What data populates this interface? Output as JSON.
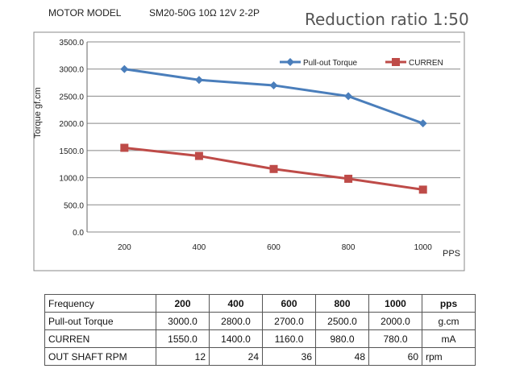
{
  "header": {
    "model_label": "MOTOR MODEL",
    "model_spec": "SM20-50G  10Ω  12V 2-2P",
    "ratio": "Reduction ratio 1:50"
  },
  "chart_data": {
    "type": "line",
    "categories": [
      "200",
      "400",
      "600",
      "800",
      "1000"
    ],
    "xlabel": "PPS",
    "ylabel": "Torque   gf.cm",
    "ylim": [
      0,
      3500
    ],
    "yticks": [
      "0.0",
      "500.0",
      "1000.0",
      "1500.0",
      "2000.0",
      "2500.0",
      "3000.0",
      "3500.0"
    ],
    "grid": true,
    "legend": "top-right",
    "series": [
      {
        "name": "Pull-out Torque",
        "values": [
          3000,
          2800,
          2700,
          2500,
          2000
        ],
        "color": "#4a7ebb",
        "marker": "diamond"
      },
      {
        "name": "CURREN",
        "values": [
          1550,
          1400,
          1160,
          980,
          780
        ],
        "color": "#be4b48",
        "marker": "square"
      }
    ]
  },
  "table": {
    "rows": [
      {
        "label": "Frequency",
        "cells": [
          "200",
          "400",
          "600",
          "800",
          "1000"
        ],
        "unit": "pps"
      },
      {
        "label": "Pull-out Torque",
        "cells": [
          "3000.0",
          "2800.0",
          "2700.0",
          "2500.0",
          "2000.0"
        ],
        "unit": "g.cm"
      },
      {
        "label": "CURREN",
        "cells": [
          "1550.0",
          "1400.0",
          "1160.0",
          "980.0",
          "780.0"
        ],
        "unit": "mA"
      },
      {
        "label": "OUT SHAFT RPM",
        "cells": [
          "12",
          "24",
          "36",
          "48",
          "60"
        ],
        "unit": "rpm"
      }
    ]
  }
}
